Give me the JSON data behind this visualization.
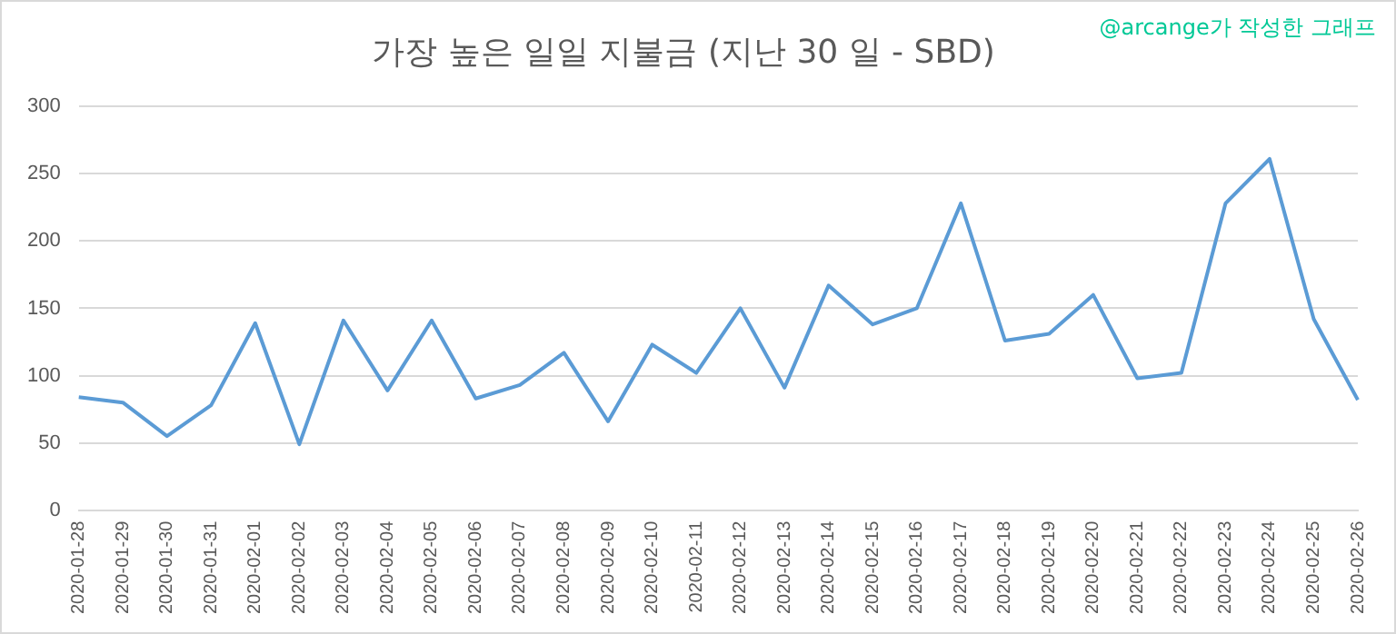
{
  "chart_data": {
    "type": "line",
    "title": "가장 높은 일일 지불금 (지난 30 일 - SBD)",
    "annotations": [
      "@arcange가 작성한 그래프"
    ],
    "categories": [
      "2020-01-28",
      "2020-01-29",
      "2020-01-30",
      "2020-01-31",
      "2020-02-01",
      "2020-02-02",
      "2020-02-03",
      "2020-02-04",
      "2020-02-05",
      "2020-02-06",
      "2020-02-07",
      "2020-02-08",
      "2020-02-09",
      "2020-02-10",
      "2020-02-11",
      "2020-02-12",
      "2020-02-13",
      "2020-02-14",
      "2020-02-15",
      "2020-02-16",
      "2020-02-17",
      "2020-02-18",
      "2020-02-19",
      "2020-02-20",
      "2020-02-21",
      "2020-02-22",
      "2020-02-23",
      "2020-02-24",
      "2020-02-25",
      "2020-02-26"
    ],
    "series": [
      {
        "color": "#5b9bd5",
        "values": [
          84,
          80,
          55,
          78,
          139,
          49,
          141,
          89,
          141,
          83,
          93,
          117,
          66,
          123,
          102,
          150,
          91,
          167,
          138,
          150,
          228,
          126,
          131,
          160,
          98,
          102,
          228,
          261,
          142,
          82
        ]
      }
    ],
    "ylim": [
      0,
      300
    ],
    "yticks": [
      0,
      50,
      100,
      150,
      200,
      250,
      300
    ],
    "grid": "y",
    "legend": false,
    "marker": "none"
  }
}
